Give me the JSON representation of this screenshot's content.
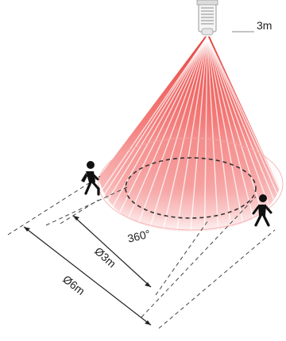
{
  "labels": {
    "height": "3m",
    "angle": "360°",
    "inner_diameter": "Ø3m",
    "outer_diameter": "Ø6m"
  },
  "colors": {
    "beam": "#f25555",
    "beam_fade": "#fde2e2",
    "line": "#333333",
    "person": "#111111"
  },
  "icons": [
    "ceiling-sensor-icon",
    "walking-person-icon",
    "walking-person-icon"
  ]
}
